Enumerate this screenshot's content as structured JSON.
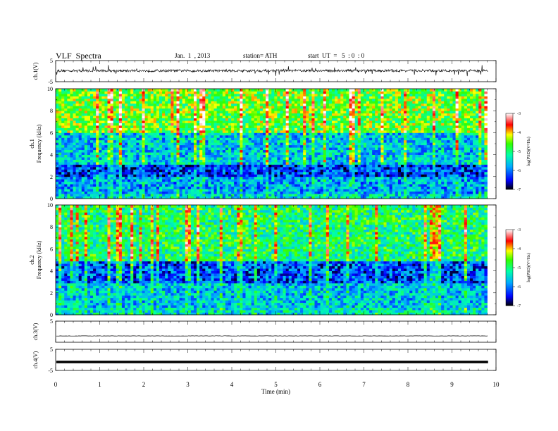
{
  "header": {
    "title": "VLF  Spectra",
    "date": "Jan.  1  , 2013",
    "station": "station= ATH",
    "start": "start  UT  =   5  : 0  : 0"
  },
  "chart_data": [
    {
      "type": "line",
      "panel": "ch1-waveform",
      "ylabel": "ch.1(V)",
      "ylim": [
        -5,
        5
      ],
      "yticks": [
        "5",
        "-5"
      ],
      "xlim": [
        0,
        10
      ],
      "note_level_V": 0.2
    },
    {
      "type": "heatmap",
      "panel": "ch1-spectrogram",
      "ylabel": "ch.1\nFrequency  (kHz)",
      "ylim": [
        0,
        10
      ],
      "yticks": [
        "0",
        "2",
        "4",
        "6",
        "8",
        "10"
      ],
      "xlim": [
        0,
        10
      ],
      "data_end_min": 9.8,
      "colorbar": {
        "label": "log(PSD)(V²/Hz)",
        "range": [
          -7,
          -3
        ],
        "ticks": [
          "-3",
          "-4",
          "-5",
          "-6",
          "-7"
        ]
      },
      "bands_kHz": [
        {
          "low": 0,
          "high": 0.5,
          "level": -5.5
        },
        {
          "low": 0.5,
          "high": 2.0,
          "level": -5.8
        },
        {
          "low": 2.0,
          "high": 3.2,
          "level": -6.3
        },
        {
          "low": 3.2,
          "high": 6.0,
          "level": -5.6
        },
        {
          "low": 6.0,
          "high": 10,
          "level": -4.6
        }
      ]
    },
    {
      "type": "heatmap",
      "panel": "ch2-spectrogram",
      "ylabel": "ch.2\nFrequency  (kHz)",
      "ylim": [
        0,
        10
      ],
      "yticks": [
        "0",
        "2",
        "4",
        "6",
        "8",
        "10"
      ],
      "xlim": [
        0,
        10
      ],
      "data_end_min": 9.8,
      "colorbar": {
        "label": "log(PSD)(V²/Hz)",
        "range": [
          -7,
          -3
        ],
        "ticks": [
          "-3",
          "-4",
          "-5",
          "-6",
          "-7"
        ]
      },
      "bands_kHz": [
        {
          "low": 0,
          "high": 0.6,
          "level": -5.4
        },
        {
          "low": 0.6,
          "high": 3.0,
          "level": -5.6
        },
        {
          "low": 3.0,
          "high": 4.8,
          "level": -6.2
        },
        {
          "low": 4.8,
          "high": 10,
          "level": -5.0
        }
      ]
    },
    {
      "type": "line",
      "panel": "ch3-waveform",
      "ylabel": "ch.3(V)",
      "ylim": [
        -5,
        5
      ],
      "yticks": [
        "5"
      ],
      "xlim": [
        0,
        10
      ],
      "level_V": -2
    },
    {
      "type": "line",
      "panel": "ch4-waveform",
      "ylabel": "ch.4(V)",
      "ylim": [
        -5,
        5
      ],
      "yticks": [
        "5",
        "-5"
      ],
      "xlim": [
        0,
        10
      ],
      "level_V": -1,
      "xlabel": "Time  (min)",
      "xticks": [
        "0",
        "1",
        "2",
        "3",
        "4",
        "5",
        "6",
        "7",
        "8",
        "9",
        "10"
      ]
    }
  ]
}
